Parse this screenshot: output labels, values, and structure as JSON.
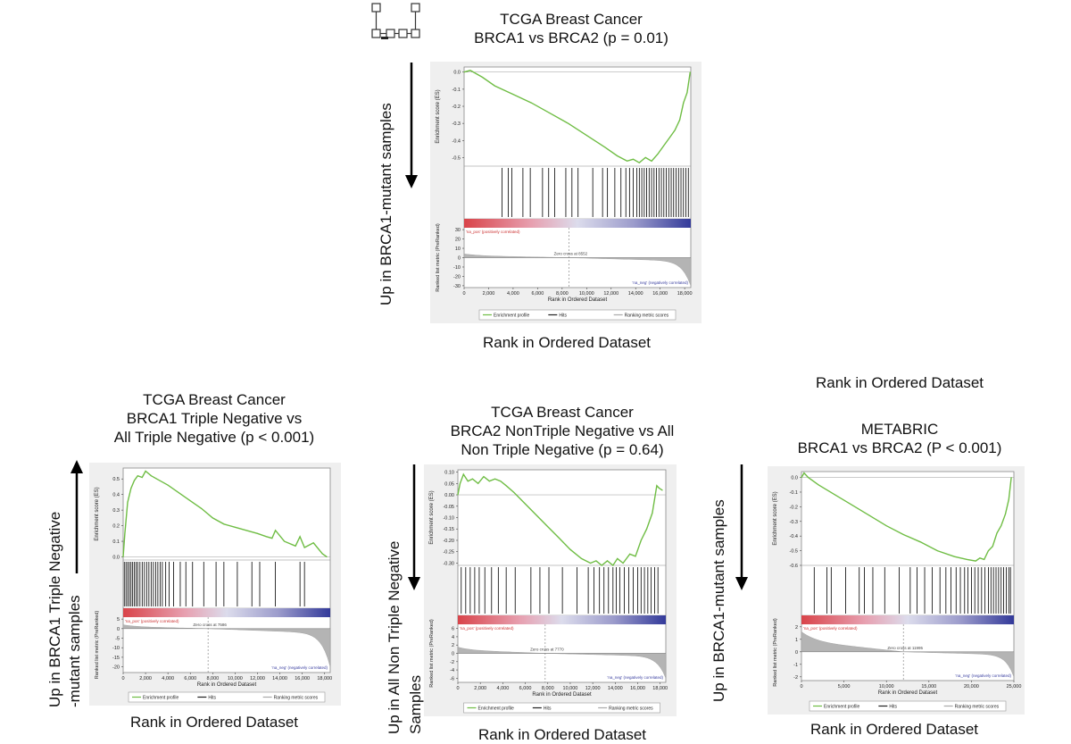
{
  "colors": {
    "es_line": "#6fbd44",
    "pos_gradient": "#d9444a",
    "neg_gradient": "#333a9a",
    "hits": "#000000",
    "metric_fill": "#b4b4b4",
    "zero_cross": "#777777",
    "pos_label": "#cc3333",
    "neg_label": "#3a3fa0"
  },
  "icons": [
    "network-logo-icon",
    "down-arrow-icon",
    "up-arrow-icon"
  ],
  "captions": {
    "a_title_1": "TCGA Breast Cancer",
    "a_title_2": "BRCA1 vs BRCA2 (p = 0.01)",
    "a_ylabel": "Up in BRCA1-mutant samples",
    "a_xcaption": "Rank in Ordered Dataset",
    "b_title_1": "TCGA Breast Cancer",
    "b_title_2": "BRCA1 Triple Negative vs",
    "b_title_3": "All Triple Negative (p < 0.001)",
    "b_ylabel_1": "Up in BRCA1 Triple Negative",
    "b_ylabel_2": "-mutant samples",
    "b_xcaption": "Rank in Ordered Dataset",
    "c_title_1": "TCGA Breast Cancer",
    "c_title_2": "BRCA2 NonTriple Negative vs All",
    "c_title_3": "Non Triple Negative (p = 0.64)",
    "c_ylabel_1": "Up in All Non   Triple Negative",
    "c_ylabel_2": "Samples",
    "c_xcaption": "Rank in Ordered Dataset",
    "d_top_caption": "Rank in Ordered Dataset",
    "d_title_1": "METABRIC",
    "d_title_2": "BRCA1 vs BRCA2 (P < 0.001)",
    "d_ylabel": "Up in BRCA1-mutant samples",
    "d_xcaption": "Rank in Ordered Dataset"
  },
  "chart_data": [
    {
      "type": "line",
      "title": "TCGA Breast Cancer BRCA1 vs BRCA2 (p = 0.01)",
      "xlabel": "Rank in Ordered Dataset",
      "es_ylabel": "Enrichment score (ES)",
      "metric_ylabel": "Ranked list metric (PreRanked)",
      "xlim": [
        0,
        18500
      ],
      "xticks": [
        0,
        2000,
        4000,
        6000,
        8000,
        10000,
        12000,
        14000,
        16000,
        18000
      ],
      "xtick_labels": [
        "0",
        "2,000",
        "4,000",
        "6,000",
        "8,000",
        "10,000",
        "12,000",
        "14,000",
        "16,000",
        "18,000"
      ],
      "es_ylim": [
        -0.55,
        0.03
      ],
      "es_yticks": [
        0.0,
        -0.1,
        -0.2,
        -0.3,
        -0.4,
        -0.5
      ],
      "es_ytick_labels": [
        "0.0",
        "-0.1",
        "-0.2",
        "-0.3",
        "-0.4",
        "-0.5"
      ],
      "metric_ylim": [
        -32,
        32
      ],
      "metric_yticks": [
        30,
        20,
        10,
        0,
        -10,
        -20,
        -30
      ],
      "metric_ytick_labels": [
        "30",
        "20",
        "10",
        "0",
        "-10",
        "-20",
        "-30"
      ],
      "metric_pos_max": 4,
      "metric_neg_min": -30,
      "series": [
        {
          "name": "Enrichment profile",
          "x": [
            0,
            500,
            1500,
            2500,
            4000,
            5500,
            7000,
            8500,
            10000,
            11500,
            12500,
            13300,
            13800,
            14300,
            14800,
            15300,
            15800,
            16300,
            16800,
            17200,
            17600,
            17900,
            18200,
            18450
          ],
          "y": [
            0.0,
            0.01,
            -0.03,
            -0.08,
            -0.13,
            -0.18,
            -0.24,
            -0.3,
            -0.37,
            -0.44,
            -0.49,
            -0.52,
            -0.51,
            -0.53,
            -0.5,
            -0.52,
            -0.48,
            -0.43,
            -0.38,
            -0.34,
            -0.28,
            -0.18,
            -0.12,
            0.0
          ]
        }
      ],
      "hits": [
        3100,
        3600,
        3900,
        4800,
        5400,
        6400,
        6900,
        7400,
        8300,
        8800,
        9300,
        10500,
        11300,
        11700,
        12300,
        12800,
        13200,
        13500,
        13800,
        14100,
        14300,
        14500,
        14700,
        14900,
        15100,
        15300,
        15500,
        15700,
        15900,
        16100,
        16300,
        16500,
        16700,
        16900,
        17100,
        17300,
        17500,
        17700,
        17900,
        18100,
        18300
      ],
      "zero_cross": 8552,
      "zero_cross_label": "Zero cross at 8552",
      "pos_label": "'na_pos' (positively correlated)",
      "neg_label": "'na_neg' (negatively correlated)",
      "legend": [
        "Enrichment profile",
        "Hits",
        "Ranking metric scores"
      ]
    },
    {
      "type": "line",
      "title": "TCGA Breast Cancer BRCA1 Triple Negative vs All Triple Negative (p < 0.001)",
      "xlabel": "Rank in Ordered Dataset",
      "es_ylabel": "Enrichment score (ES)",
      "metric_ylabel": "Ranked list metric (PreRanked)",
      "xlim": [
        0,
        18500
      ],
      "xticks": [
        0,
        2000,
        4000,
        6000,
        8000,
        10000,
        12000,
        14000,
        16000,
        18000
      ],
      "xtick_labels": [
        "0",
        "2,000",
        "4,000",
        "6,000",
        "8,000",
        "10,000",
        "12,000",
        "14,000",
        "16,000",
        "18,000"
      ],
      "es_ylim": [
        -0.02,
        0.57
      ],
      "es_yticks": [
        0.5,
        0.4,
        0.3,
        0.2,
        0.1,
        0.0
      ],
      "es_ytick_labels": [
        "0.5",
        "0.4",
        "0.3",
        "0.2",
        "0.1",
        "0.0"
      ],
      "metric_ylim": [
        -23,
        6
      ],
      "metric_yticks": [
        5,
        0,
        -5,
        -10,
        -15,
        -20
      ],
      "metric_ytick_labels": [
        "5",
        "0",
        "-5",
        "-10",
        "-15",
        "-20"
      ],
      "metric_pos_max": 2,
      "metric_neg_min": -20,
      "series": [
        {
          "name": "Enrichment profile",
          "x": [
            0,
            150,
            400,
            700,
            1000,
            1300,
            1700,
            2000,
            2500,
            3000,
            4000,
            5000,
            6000,
            7000,
            8000,
            9000,
            10000,
            11000,
            12000,
            12800,
            13300,
            13600,
            14400,
            15400,
            15800,
            16200,
            17000,
            17800,
            18200
          ],
          "y": [
            0.0,
            0.15,
            0.35,
            0.44,
            0.49,
            0.52,
            0.51,
            0.55,
            0.52,
            0.5,
            0.46,
            0.41,
            0.36,
            0.31,
            0.25,
            0.21,
            0.19,
            0.17,
            0.15,
            0.13,
            0.12,
            0.17,
            0.1,
            0.07,
            0.13,
            0.06,
            0.09,
            0.02,
            0.0
          ]
        }
      ],
      "hits": [
        100,
        250,
        400,
        550,
        700,
        850,
        1000,
        1150,
        1300,
        1500,
        1700,
        1900,
        2100,
        2300,
        2500,
        2700,
        2900,
        3100,
        3300,
        3500,
        3800,
        4100,
        4500,
        5100,
        5600,
        6200,
        7200,
        8300,
        9000,
        10200,
        11500,
        12200,
        13600,
        15800,
        16200
      ],
      "zero_cross": 7586,
      "zero_cross_label": "Zero cross at 7586",
      "pos_label": "'na_pos' (positively correlated)",
      "neg_label": "'na_neg' (negatively correlated)",
      "legend": [
        "Enrichment profile",
        "Hits",
        "Ranking metric scores"
      ]
    },
    {
      "type": "line",
      "title": "TCGA Breast Cancer BRCA2 NonTriple Negative vs All Non Triple Negative (p = 0.64)",
      "xlabel": "Rank in Ordered Dataset",
      "es_ylabel": "Enrichment score (ES)",
      "metric_ylabel": "Ranked list metric (PreRanked)",
      "xlim": [
        0,
        18500
      ],
      "xticks": [
        0,
        2000,
        4000,
        6000,
        8000,
        10000,
        12000,
        14000,
        16000,
        18000
      ],
      "xtick_labels": [
        "0",
        "2,000",
        "4,000",
        "6,000",
        "8,000",
        "10,000",
        "12,000",
        "14,000",
        "16,000",
        "18,000"
      ],
      "es_ylim": [
        -0.31,
        0.11
      ],
      "es_yticks": [
        0.1,
        0.05,
        0.0,
        -0.05,
        -0.1,
        -0.15,
        -0.2,
        -0.25,
        -0.3
      ],
      "es_ytick_labels": [
        "0.10",
        "0.05",
        "0.00",
        "-0.05",
        "-0.10",
        "-0.15",
        "-0.20",
        "-0.25",
        "-0.30"
      ],
      "metric_ylim": [
        -7,
        7
      ],
      "metric_yticks": [
        6,
        4,
        2,
        0,
        -2,
        -4,
        -6
      ],
      "metric_ytick_labels": [
        "6",
        "4",
        "2",
        "0",
        "-2",
        "-4",
        "-6"
      ],
      "metric_pos_max": 1.5,
      "metric_neg_min": -6,
      "series": [
        {
          "name": "Enrichment profile",
          "x": [
            0,
            200,
            500,
            900,
            1300,
            1800,
            2300,
            2800,
            3300,
            3800,
            4300,
            5000,
            6000,
            7000,
            8000,
            9000,
            10000,
            11000,
            11800,
            12300,
            12800,
            13300,
            13800,
            14200,
            14700,
            15300,
            15800,
            16300,
            16800,
            17300,
            17700,
            17900,
            18200
          ],
          "y": [
            0.0,
            0.05,
            0.09,
            0.06,
            0.07,
            0.05,
            0.08,
            0.06,
            0.07,
            0.06,
            0.04,
            0.01,
            -0.04,
            -0.09,
            -0.14,
            -0.19,
            -0.24,
            -0.28,
            -0.3,
            -0.29,
            -0.31,
            -0.29,
            -0.31,
            -0.28,
            -0.3,
            -0.26,
            -0.27,
            -0.2,
            -0.15,
            -0.08,
            0.04,
            0.03,
            0.02
          ]
        }
      ],
      "hits": [
        300,
        700,
        1100,
        1500,
        1900,
        2400,
        3000,
        3600,
        4300,
        5100,
        6500,
        7300,
        8100,
        9300,
        10600,
        11600,
        12100,
        12600,
        13000,
        13400,
        13800,
        14100,
        14400,
        14800,
        15200,
        15600,
        16000,
        16300,
        16600,
        16900,
        17200,
        17500,
        17800
      ],
      "zero_cross": 7770,
      "zero_cross_label": "Zero cross at 7770",
      "pos_label": "'na_pos' (positively correlated)",
      "neg_label": "'na_neg' (negatively correlated)",
      "legend": [
        "Enrichment profile",
        "Hits",
        "Ranking metric scores"
      ]
    },
    {
      "type": "line",
      "title": "METABRIC BRCA1 vs BRCA2 (P < 0.001)",
      "xlabel": "Rank in Ordered Dataset",
      "es_ylabel": "Enrichment score (ES)",
      "metric_ylabel": "Ranked list metric (PreRanked)",
      "xlim": [
        0,
        25000
      ],
      "xticks": [
        0,
        5000,
        10000,
        15000,
        20000,
        25000
      ],
      "xtick_labels": [
        "0",
        "5,000",
        "10,000",
        "15,000",
        "20,000",
        "25,000"
      ],
      "es_ylim": [
        -0.6,
        0.04
      ],
      "es_yticks": [
        0.0,
        -0.1,
        -0.2,
        -0.3,
        -0.4,
        -0.5,
        -0.6
      ],
      "es_ytick_labels": [
        "0.0",
        "-0.1",
        "-0.2",
        "-0.3",
        "-0.4",
        "-0.5",
        "-0.6"
      ],
      "metric_ylim": [
        -2.3,
        2.2
      ],
      "metric_yticks": [
        2,
        1,
        0,
        -1,
        -2
      ],
      "metric_ytick_labels": [
        "2",
        "1",
        "0",
        "-1",
        "-2"
      ],
      "metric_pos_max": 1.6,
      "metric_neg_min": -2.0,
      "series": [
        {
          "name": "Enrichment profile",
          "x": [
            0,
            300,
            800,
            2000,
            4000,
            6000,
            8000,
            10000,
            12000,
            14000,
            16000,
            18000,
            19500,
            20500,
            21000,
            21500,
            22000,
            22500,
            23000,
            23500,
            24000,
            24400,
            24700
          ],
          "y": [
            0.0,
            0.03,
            0.0,
            -0.05,
            -0.12,
            -0.19,
            -0.26,
            -0.33,
            -0.39,
            -0.44,
            -0.5,
            -0.54,
            -0.56,
            -0.57,
            -0.55,
            -0.56,
            -0.5,
            -0.47,
            -0.38,
            -0.33,
            -0.25,
            -0.15,
            0.0
          ]
        }
      ],
      "hits": [
        1500,
        3000,
        3500,
        5200,
        6800,
        7400,
        8400,
        9800,
        11500,
        12800,
        13600,
        14500,
        15400,
        16300,
        17000,
        17600,
        18200,
        18700,
        19200,
        19600,
        20000,
        20400,
        20800,
        21200,
        21600,
        22000,
        22300,
        22600,
        22900,
        23200,
        23500,
        23800,
        24100,
        24400,
        24600
      ],
      "zero_cross": 11995,
      "zero_cross_label": "Zero cross at 11995",
      "pos_label": "'na_pos' (positively correlated)",
      "neg_label": "'na_neg' (negatively correlated)",
      "legend": [
        "Enrichment profile",
        "Hits",
        "Ranking metric scores"
      ]
    }
  ]
}
